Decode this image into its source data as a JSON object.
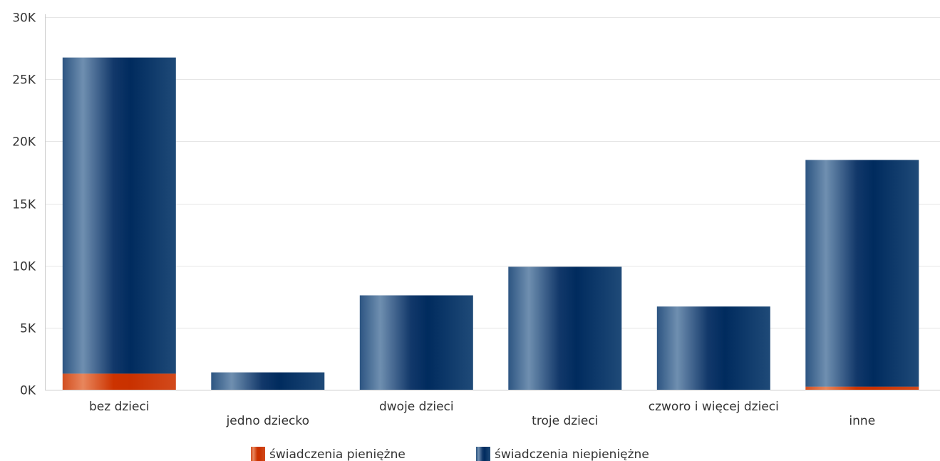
{
  "chart_data": {
    "type": "bar",
    "stacked": true,
    "categories": [
      "bez dzieci",
      "jedno dziecko",
      "dwoje dzieci",
      "troje dzieci",
      "czworo i więcej dzieci",
      "inne"
    ],
    "series": [
      {
        "name": "świadczenia pieniężne",
        "color": "#cc3300",
        "values": [
          1300,
          0,
          0,
          0,
          0,
          250
        ]
      },
      {
        "name": "świadczenia niepieniężne",
        "color": "#0f3566",
        "values": [
          25450,
          1400,
          7600,
          9900,
          6700,
          18250
        ]
      }
    ],
    "ylim": [
      0,
      30000
    ],
    "yticks": [
      {
        "value": 0,
        "label": "0K"
      },
      {
        "value": 5000,
        "label": "5K"
      },
      {
        "value": 10000,
        "label": "10K"
      },
      {
        "value": 15000,
        "label": "15K"
      },
      {
        "value": 20000,
        "label": "20K"
      },
      {
        "value": 25000,
        "label": "25K"
      },
      {
        "value": 30000,
        "label": "30K"
      }
    ],
    "grid": true,
    "legend_position": "bottom"
  }
}
